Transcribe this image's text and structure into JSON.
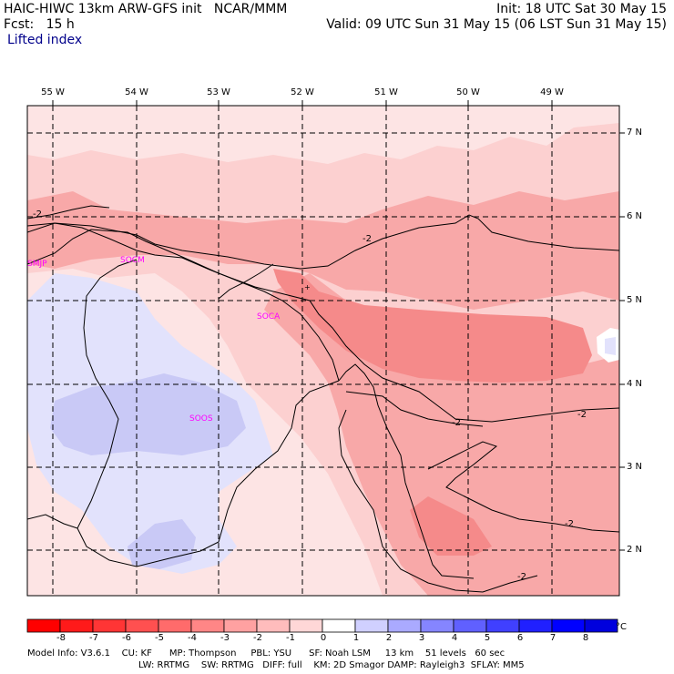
{
  "header": {
    "title": "HAIC-HIWC 13km ARW-GFS init   NCAR/MMM",
    "forecast": "Fcst:   15 h",
    "variable": "Lifted index",
    "init": "Init: 18 UTC Sat 30 May 15",
    "valid": "Valid: 09 UTC Sun 31 May 15 (06 LST Sun 31 May 15)"
  },
  "map": {
    "lon_labels": [
      "55 W",
      "54 W",
      "53 W",
      "52 W",
      "51 W",
      "50 W",
      "49 W"
    ],
    "lat_labels": [
      "7 N",
      "6 N",
      "5 N",
      "4 N",
      "3 N",
      "2 N"
    ],
    "contour_labels": [
      "-2",
      "-2",
      "-2",
      "-2",
      "-2",
      "-2"
    ],
    "stations": [
      "SMJP",
      "SOCM",
      "SOCA",
      "SOOS",
      "+"
    ]
  },
  "colorbar": {
    "ticks": [
      "-8",
      "-7",
      "-6",
      "-5",
      "-4",
      "-3",
      "-2",
      "-1",
      "0",
      "1",
      "2",
      "3",
      "4",
      "5",
      "6",
      "7",
      "8"
    ],
    "unit": "°C",
    "colors": [
      "#ff0000",
      "#ff1a1a",
      "#ff3535",
      "#ff5050",
      "#ff6b6b",
      "#ff8686",
      "#ffa1a1",
      "#ffbcbc",
      "#ffd7d7",
      "#ffffff",
      "#d0d0ff",
      "#aaaaff",
      "#8585ff",
      "#6060ff",
      "#4040ff",
      "#2020ff",
      "#0000ff",
      "#0000dd"
    ]
  },
  "footer": {
    "line1": "Model Info: V3.6.1    CU: KF      MP: Thompson     PBL: YSU      SF: Noah LSM     13 km    51 levels   60 sec",
    "line2": "LW: RRTMG    SW: RRTMG   DIFF: full    KM: 2D Smagor DAMP: Rayleigh3  SFLAY: MM5"
  },
  "colors": {
    "light_pink": "#fcd0d0",
    "pink": "#f8a8a8",
    "mid_red": "#f58a8a",
    "very_light_pink": "#fde4e4",
    "light_blue": "#e2e2fc",
    "blue": "#c9c9f6",
    "label_magenta": "#ff00ff",
    "title_navy": "#00008b"
  }
}
